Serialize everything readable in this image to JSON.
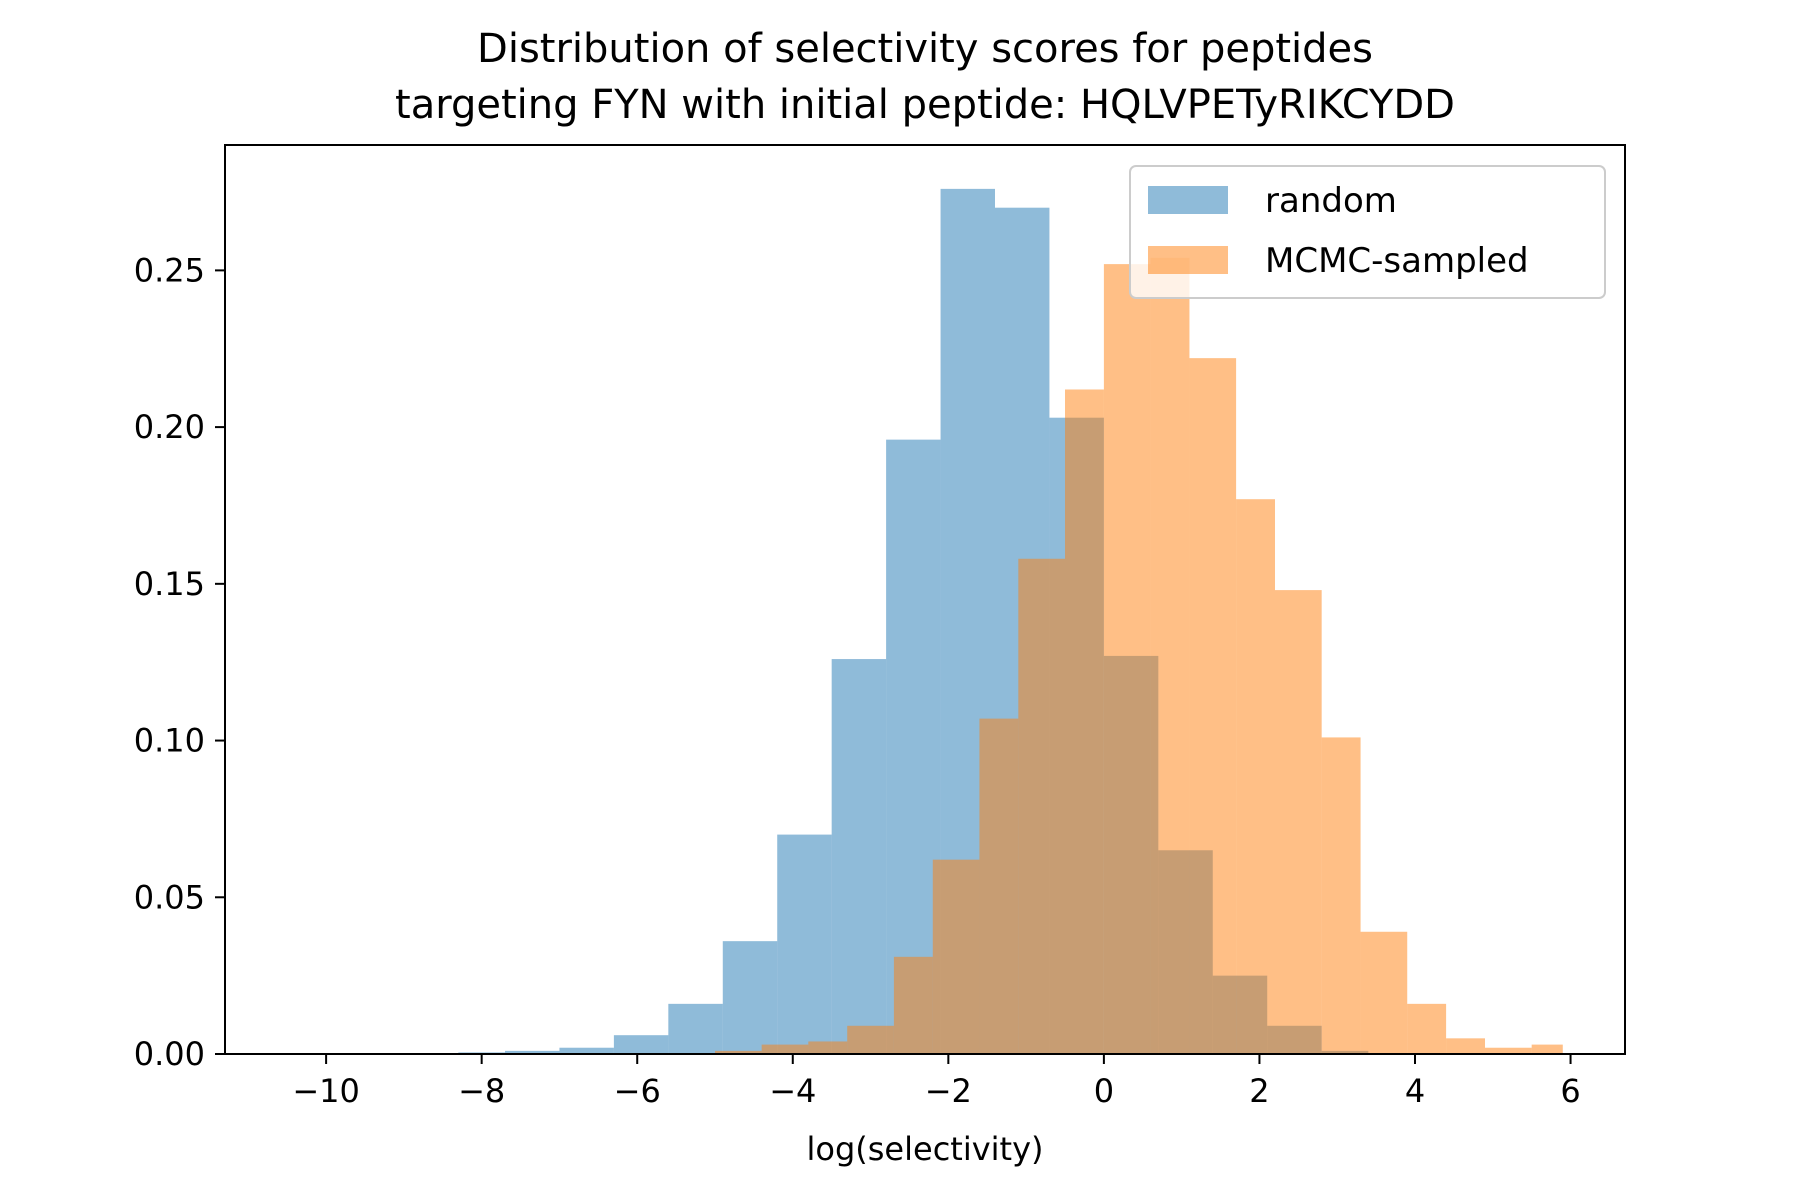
{
  "chart_data": {
    "type": "bar",
    "title_lines": [
      "Distribution of selectivity scores for peptides",
      "targeting FYN with initial peptide: HQLVPETyRIKCYDD"
    ],
    "xlabel": "log(selectivity)",
    "ylabel": "",
    "xlim": [
      -11.3,
      6.7
    ],
    "ylim": [
      0,
      0.29
    ],
    "xticks": [
      -10,
      -8,
      -6,
      -4,
      -2,
      0,
      2,
      4,
      6
    ],
    "xtick_labels": [
      "−10",
      "−8",
      "−6",
      "−4",
      "−2",
      "0",
      "2",
      "4",
      "6"
    ],
    "yticks": [
      0,
      0.05,
      0.1,
      0.15,
      0.2,
      0.25
    ],
    "ytick_labels": [
      "0.00",
      "0.05",
      "0.10",
      "0.15",
      "0.20",
      "0.25"
    ],
    "grid": false,
    "legend_position": "top-right",
    "series": [
      {
        "name": "random",
        "color": "#1f77b4",
        "opacity": 0.5,
        "bins": [
          {
            "x0": -9.0,
            "x1": -8.3,
            "y": 0.0003
          },
          {
            "x0": -8.3,
            "x1": -7.7,
            "y": 0.0005
          },
          {
            "x0": -7.7,
            "x1": -7.0,
            "y": 0.001
          },
          {
            "x0": -7.0,
            "x1": -6.3,
            "y": 0.002
          },
          {
            "x0": -6.3,
            "x1": -5.6,
            "y": 0.006
          },
          {
            "x0": -5.6,
            "x1": -4.9,
            "y": 0.016
          },
          {
            "x0": -4.9,
            "x1": -4.2,
            "y": 0.036
          },
          {
            "x0": -4.2,
            "x1": -3.5,
            "y": 0.07
          },
          {
            "x0": -3.5,
            "x1": -2.8,
            "y": 0.126
          },
          {
            "x0": -2.8,
            "x1": -2.1,
            "y": 0.196
          },
          {
            "x0": -2.1,
            "x1": -1.4,
            "y": 0.276
          },
          {
            "x0": -1.4,
            "x1": -0.7,
            "y": 0.27
          },
          {
            "x0": -0.7,
            "x1": 0.0,
            "y": 0.203
          },
          {
            "x0": 0.0,
            "x1": 0.7,
            "y": 0.127
          },
          {
            "x0": 0.7,
            "x1": 1.4,
            "y": 0.065
          },
          {
            "x0": 1.4,
            "x1": 2.1,
            "y": 0.025
          },
          {
            "x0": 2.1,
            "x1": 2.8,
            "y": 0.009
          },
          {
            "x0": 2.8,
            "x1": 3.4,
            "y": 0.001
          }
        ]
      },
      {
        "name": "MCMC-sampled",
        "color": "#ff7f0e",
        "opacity": 0.5,
        "bins": [
          {
            "x0": -5.0,
            "x1": -4.4,
            "y": 0.001
          },
          {
            "x0": -4.4,
            "x1": -3.8,
            "y": 0.003
          },
          {
            "x0": -3.8,
            "x1": -3.3,
            "y": 0.004
          },
          {
            "x0": -3.3,
            "x1": -2.7,
            "y": 0.009
          },
          {
            "x0": -2.7,
            "x1": -2.2,
            "y": 0.031
          },
          {
            "x0": -2.2,
            "x1": -1.6,
            "y": 0.062
          },
          {
            "x0": -1.6,
            "x1": -1.1,
            "y": 0.107
          },
          {
            "x0": -1.1,
            "x1": -0.5,
            "y": 0.158
          },
          {
            "x0": -0.5,
            "x1": 0.0,
            "y": 0.212
          },
          {
            "x0": 0.0,
            "x1": 0.6,
            "y": 0.252
          },
          {
            "x0": 0.6,
            "x1": 1.1,
            "y": 0.254
          },
          {
            "x0": 1.1,
            "x1": 1.7,
            "y": 0.222
          },
          {
            "x0": 1.7,
            "x1": 2.2,
            "y": 0.177
          },
          {
            "x0": 2.2,
            "x1": 2.8,
            "y": 0.148
          },
          {
            "x0": 2.8,
            "x1": 3.3,
            "y": 0.101
          },
          {
            "x0": 3.3,
            "x1": 3.9,
            "y": 0.039
          },
          {
            "x0": 3.9,
            "x1": 4.4,
            "y": 0.016
          },
          {
            "x0": 4.4,
            "x1": 4.9,
            "y": 0.005
          },
          {
            "x0": 4.9,
            "x1": 5.5,
            "y": 0.002
          },
          {
            "x0": 5.5,
            "x1": 5.9,
            "y": 0.003
          }
        ]
      }
    ]
  }
}
